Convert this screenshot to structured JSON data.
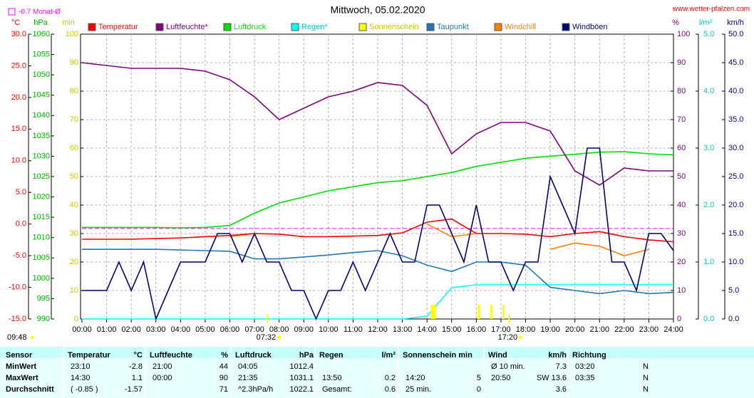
{
  "chart_data": {
    "type": "line",
    "title": "Mittwoch, 05.02.2020",
    "source": "www.wetter-pfalzen.com",
    "day_length": "09:48",
    "sun_events": [
      {
        "x": 7.53,
        "label": "07:32"
      },
      {
        "x": 17.33,
        "label": "17:20"
      }
    ],
    "reference": {
      "label": "-0.7 Monat-Ø",
      "value": -0.7,
      "axis": 0,
      "color": "#ff00ff"
    },
    "xlim": [
      0,
      24
    ],
    "xticks": [
      {
        "value": 0,
        "label": "00:00"
      },
      {
        "value": 1,
        "label": "01:00"
      },
      {
        "value": 2,
        "label": "02:00"
      },
      {
        "value": 3,
        "label": "03:00"
      },
      {
        "value": 4,
        "label": "04:00"
      },
      {
        "value": 5,
        "label": "05:00"
      },
      {
        "value": 6,
        "label": "06:00"
      },
      {
        "value": 7,
        "label": "07:00"
      },
      {
        "value": 8,
        "label": "08:00"
      },
      {
        "value": 9,
        "label": "09:00"
      },
      {
        "value": 10,
        "label": "10:00"
      },
      {
        "value": 11,
        "label": "11:00"
      },
      {
        "value": 12,
        "label": "12:00"
      },
      {
        "value": 13,
        "label": "13:00"
      },
      {
        "value": 14,
        "label": "14:00"
      },
      {
        "value": 15,
        "label": "15:00"
      },
      {
        "value": 16,
        "label": "16:00"
      },
      {
        "value": 17,
        "label": "17:00"
      },
      {
        "value": 18,
        "label": "18:00"
      },
      {
        "value": 19,
        "label": "19:00"
      },
      {
        "value": 20,
        "label": "20:00"
      },
      {
        "value": 21,
        "label": "21:00"
      },
      {
        "value": 22,
        "label": "22:00"
      },
      {
        "value": 23,
        "label": "23:00"
      },
      {
        "value": 24,
        "label": "24:00"
      }
    ],
    "grid": true,
    "axes": [
      {
        "unit": "°C",
        "color": "#ff0000",
        "lim": [
          -15,
          30
        ],
        "ticks": [
          {
            "value": 30,
            "label": "30.0"
          },
          {
            "value": 25,
            "label": "25.0"
          },
          {
            "value": 20,
            "label": "20.0"
          },
          {
            "value": 15,
            "label": "15.0"
          },
          {
            "value": 10,
            "label": "10.0"
          },
          {
            "value": 5,
            "label": "5.0"
          },
          {
            "value": 0,
            "label": "0.0"
          },
          {
            "value": -5,
            "label": "-5.0"
          },
          {
            "value": -10,
            "label": "-10.0"
          },
          {
            "value": -15,
            "label": "-15.0"
          }
        ]
      },
      {
        "unit": "hPa",
        "color": "#00b000",
        "lim": [
          990,
          1060
        ],
        "ticks": [
          1060,
          1055,
          1050,
          1045,
          1040,
          1035,
          1030,
          1025,
          1020,
          1015,
          1010,
          1005,
          1000,
          995,
          990
        ]
      },
      {
        "unit": "min",
        "color": "#c8c800",
        "lim": [
          0,
          100
        ],
        "ticks": [
          100,
          90,
          80,
          70,
          60,
          50,
          40,
          30,
          20,
          10,
          0
        ]
      },
      {
        "unit": "%",
        "color": "#800080",
        "lim": [
          0,
          100
        ],
        "ticks": [
          100,
          90,
          80,
          70,
          60,
          50,
          40,
          30,
          20,
          10,
          0
        ]
      },
      {
        "unit": "l/m²",
        "color": "#00c8c8",
        "lim": [
          0,
          5
        ],
        "ticks": [
          {
            "value": 5,
            "label": "5.0"
          },
          {
            "value": 4,
            "label": "4.0"
          },
          {
            "value": 3,
            "label": "3.0"
          },
          {
            "value": 2,
            "label": "2.0"
          },
          {
            "value": 1,
            "label": "1.0"
          },
          {
            "value": 0,
            "label": "0.0"
          }
        ]
      },
      {
        "unit": "km/h",
        "color": "#000080",
        "lim": [
          0,
          50
        ],
        "ticks": [
          {
            "value": 50,
            "label": "50.0"
          },
          {
            "value": 45,
            "label": "45.0"
          },
          {
            "value": 40,
            "label": "40.0"
          },
          {
            "value": 35,
            "label": "35.0"
          },
          {
            "value": 30,
            "label": "30.0"
          },
          {
            "value": 25,
            "label": "25.0"
          },
          {
            "value": 20,
            "label": "20.0"
          },
          {
            "value": 15,
            "label": "15.0"
          },
          {
            "value": 10,
            "label": "10.0"
          },
          {
            "value": 5,
            "label": "5.0"
          },
          {
            "value": 0,
            "label": "0.0"
          }
        ]
      }
    ],
    "x": [
      0,
      1,
      2,
      3,
      4,
      5,
      6,
      7,
      8,
      9,
      10,
      11,
      12,
      13,
      14,
      15,
      16,
      17,
      18,
      19,
      20,
      21,
      22,
      23,
      24
    ],
    "series": [
      {
        "name": "Temperatur",
        "color": "#ff0000",
        "axis": 0,
        "kind": "line",
        "values": [
          -2.4,
          -2.4,
          -2.4,
          -2.3,
          -2.2,
          -2.0,
          -1.8,
          -1.5,
          -1.6,
          -2.0,
          -2.0,
          -1.9,
          -1.8,
          -1.4,
          0.3,
          0.8,
          -1.5,
          -1.5,
          -1.6,
          -2.0,
          -1.5,
          -1.2,
          -2.0,
          -2.5,
          -2.8
        ]
      },
      {
        "name": "Luftfeuchte*",
        "color": "#800080",
        "axis": 3,
        "kind": "line",
        "values": [
          90,
          89,
          88,
          88,
          88,
          87,
          84,
          78,
          70,
          74,
          78,
          80,
          83,
          82,
          75,
          58,
          65,
          69,
          69,
          66,
          52,
          47,
          53,
          52,
          52
        ]
      },
      {
        "name": "Luftdruck",
        "color": "#00e000",
        "axis": 1,
        "kind": "line",
        "values": [
          1012.5,
          1012.5,
          1012.5,
          1012.5,
          1012.4,
          1012.5,
          1013,
          1016,
          1018.5,
          1020,
          1021.5,
          1022.5,
          1023.5,
          1024,
          1025,
          1026,
          1027.5,
          1028.5,
          1029.5,
          1030,
          1030.5,
          1031,
          1031.1,
          1030.6,
          1030.3
        ]
      },
      {
        "name": "Regen*",
        "color": "#00ffff",
        "axis": 4,
        "kind": "line",
        "values": [
          0,
          0,
          0,
          0,
          0,
          0,
          0,
          0,
          0,
          0,
          0,
          0,
          0,
          0,
          0.05,
          0.55,
          0.6,
          0.6,
          0.6,
          0.6,
          0.6,
          0.6,
          0.6,
          0.6,
          0.6
        ]
      },
      {
        "name": "Sonnenschein",
        "color": "#ffff00",
        "axis": 2,
        "kind": "bar",
        "x": [
          14.2,
          14.3,
          16.1,
          16.6,
          17.1
        ],
        "values": [
          5,
          5,
          5,
          5,
          5
        ]
      },
      {
        "name": "Taupunkt",
        "color": "#1e78b4",
        "axis": 0,
        "kind": "line",
        "values": [
          -4,
          -4,
          -4,
          -4,
          -4.1,
          -4.2,
          -4.3,
          -5.5,
          -5.5,
          -5.2,
          -4.9,
          -4.5,
          -4.2,
          -5,
          -6.5,
          -7.5,
          -6,
          -6,
          -6.5,
          -10,
          -10.5,
          -11,
          -10.5,
          -11,
          -10.8
        ]
      },
      {
        "name": "Windchill",
        "color": "#ff8000",
        "axis": 0,
        "kind": "line",
        "values": [
          null,
          null,
          null,
          null,
          null,
          null,
          -2,
          -1.5,
          null,
          null,
          null,
          null,
          null,
          null,
          0,
          -2,
          -1.5,
          null,
          null,
          -4,
          -3,
          -3.5,
          -5,
          -4,
          null
        ]
      },
      {
        "name": "Windböen",
        "color": "#000080",
        "axis": 5,
        "kind": "line",
        "x": [
          0,
          0.5,
          1,
          1.5,
          2,
          2.5,
          3,
          3.5,
          4,
          4.5,
          5,
          5.5,
          6,
          6.5,
          7,
          7.5,
          8,
          8.5,
          9,
          9.5,
          10,
          10.5,
          11,
          11.5,
          12,
          12.5,
          13,
          13.5,
          14,
          14.5,
          15,
          15.5,
          16,
          16.5,
          17,
          17.5,
          18,
          18.5,
          19,
          19.5,
          20,
          20.5,
          21,
          21.5,
          22,
          22.5,
          23,
          23.5,
          24
        ],
        "values": [
          5,
          5,
          5,
          10,
          5,
          10,
          0,
          5,
          10,
          10,
          10,
          15,
          15,
          10,
          15,
          10,
          10,
          5,
          5,
          0,
          5,
          5,
          10,
          5,
          10,
          15,
          10,
          10,
          20,
          20,
          15,
          10,
          20,
          10,
          10,
          5,
          10,
          10,
          25,
          20,
          15,
          30,
          30,
          10,
          10,
          5,
          15,
          15,
          12
        ]
      }
    ]
  },
  "table": {
    "header": [
      {
        "label": "Sensor"
      },
      {
        "label": "Temperatur",
        "unit": "°C"
      },
      {
        "label": "Luftfeuchte",
        "unit": "%"
      },
      {
        "label": "Luftdruck",
        "unit": "hPa"
      },
      {
        "label": "Regen",
        "unit": "l/m²"
      },
      {
        "label": "Sonnenschein min"
      },
      {
        "label": "Wind",
        "unit": "km/h"
      },
      {
        "label": "Richtung"
      }
    ],
    "rows": [
      {
        "label": "MinWert",
        "cells": [
          [
            "23:10",
            "-2.8"
          ],
          [
            "21:00",
            "44"
          ],
          [
            "04:05",
            "1012.4"
          ],
          [
            null,
            null
          ],
          [
            null,
            null
          ],
          [
            "Ø 10 min.",
            "7.3"
          ],
          [
            "03:20",
            "N"
          ]
        ]
      },
      {
        "label": "MaxWert",
        "cells": [
          [
            "14:30",
            "1.1"
          ],
          [
            "00:00",
            "90"
          ],
          [
            "21:35",
            "1031.1"
          ],
          [
            "13:50",
            "0.2"
          ],
          [
            "14:20",
            "5"
          ],
          [
            "20:50",
            "SW 13.6"
          ],
          [
            "03:35",
            "N"
          ]
        ]
      },
      {
        "label": "Durchschnitt",
        "cells": [
          [
            "( -0.85 )",
            "-1.57"
          ],
          [
            null,
            "71"
          ],
          [
            "^2.3hPa/h",
            "1022.1"
          ],
          [
            "Gesamt:",
            "0.6"
          ],
          [
            "25 min.",
            "0"
          ],
          [
            null,
            "3.6"
          ],
          [
            null,
            "N"
          ]
        ]
      }
    ]
  }
}
